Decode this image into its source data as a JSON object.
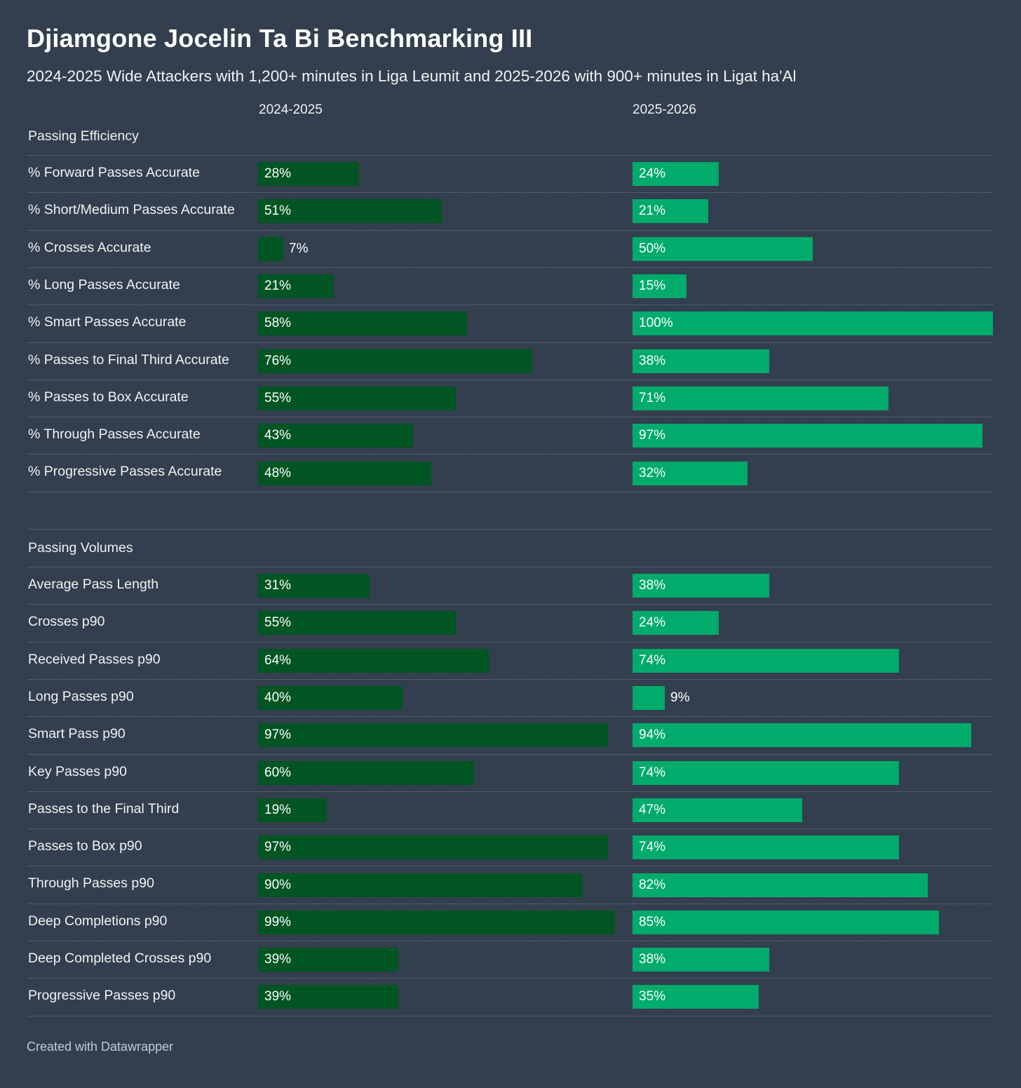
{
  "title": "Djiamgone Jocelin Ta Bi Benchmarking III",
  "subtitle": "2024-2025 Wide Attackers with 1,200+ minutes in Liga Leumit and 2025-2026 with 900+ minutes in Ligat ha'Al",
  "footer": "Created with Datawrapper",
  "colors": {
    "background": "#333f4f",
    "season_1": "#005522",
    "season_2": "#00ab6b"
  },
  "chart_data": {
    "type": "bar",
    "orientation": "horizontal",
    "columns": [
      "2024-2025",
      "2025-2026"
    ],
    "xlim": [
      0,
      100
    ],
    "unit": "%",
    "sections": [
      {
        "name": "Passing Efficiency",
        "rows": [
          {
            "label": "% Forward Passes Accurate",
            "values": [
              28,
              24
            ]
          },
          {
            "label": "% Short/Medium Passes Accurate",
            "values": [
              51,
              21
            ]
          },
          {
            "label": "% Crosses Accurate",
            "values": [
              7,
              50
            ]
          },
          {
            "label": "% Long Passes Accurate",
            "values": [
              21,
              15
            ]
          },
          {
            "label": "% Smart Passes Accurate",
            "values": [
              58,
              100
            ]
          },
          {
            "label": "% Passes to Final Third Accurate",
            "values": [
              76,
              38
            ]
          },
          {
            "label": "% Passes to Box Accurate",
            "values": [
              55,
              71
            ]
          },
          {
            "label": "% Through Passes Accurate",
            "values": [
              43,
              97
            ]
          },
          {
            "label": "% Progressive Passes Accurate",
            "values": [
              48,
              32
            ]
          }
        ]
      },
      {
        "name": "Passing Volumes",
        "rows": [
          {
            "label": "Average Pass Length",
            "values": [
              31,
              38
            ]
          },
          {
            "label": "Crosses p90",
            "values": [
              55,
              24
            ]
          },
          {
            "label": "Received Passes p90",
            "values": [
              64,
              74
            ]
          },
          {
            "label": "Long Passes p90",
            "values": [
              40,
              9
            ]
          },
          {
            "label": "Smart Pass p90",
            "values": [
              97,
              94
            ]
          },
          {
            "label": "Key Passes p90",
            "values": [
              60,
              74
            ]
          },
          {
            "label": "Passes to the Final Third",
            "values": [
              19,
              47
            ]
          },
          {
            "label": "Passes to Box p90",
            "values": [
              97,
              74
            ]
          },
          {
            "label": "Through Passes p90",
            "values": [
              90,
              82
            ]
          },
          {
            "label": "Deep Completions p90",
            "values": [
              99,
              85
            ]
          },
          {
            "label": "Deep Completed Crosses p90",
            "values": [
              39,
              38
            ]
          },
          {
            "label": "Progressive Passes p90",
            "values": [
              39,
              35
            ]
          }
        ]
      }
    ]
  }
}
